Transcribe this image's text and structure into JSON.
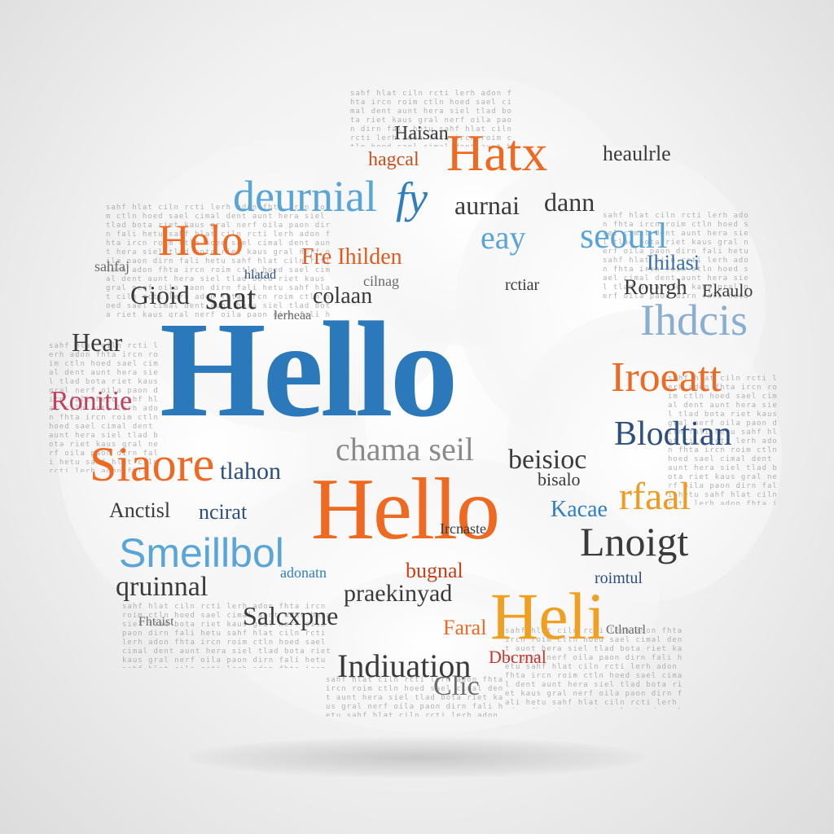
{
  "colors": {
    "blue": "#2f7fc0",
    "light_blue": "#5aa5d8",
    "orange": "#ee6a22",
    "amber": "#f0a020",
    "dark": "#3a3a3a",
    "gray": "#6a6a6a",
    "navy": "#2d4f80",
    "background": "#f1f1f1"
  },
  "words": {
    "hello_main": "Hello",
    "hello_orange": "Hello",
    "heli": "Heli",
    "hatx": "Hatx",
    "deurnial": "deurnial",
    "fy": "fy",
    "helo": "Helo",
    "eay": "eay",
    "seourl": "seourl",
    "aurnai": "aurnai",
    "dann": "dann",
    "ironri": "Iroeatt",
    "siaore": "Siaore",
    "smeillbol": "Smeillbol",
    "blodtian": "Blodtian",
    "lhdcis": "Ihdcis",
    "lnoigt": "Lnoigt",
    "rfaal": "rfaal",
    "indiuation": "Indiuation",
    "praekinyad": "praekinyad",
    "chama_sell": "chama seil",
    "saat": "saat",
    "fre_hidem": "Fre Ihilden",
    "gioid": "Gioid",
    "beisioc": "beisioc",
    "ronte": "Ronitie",
    "heer": "Hear",
    "qruinnal": "qruinnal",
    "salsxpne": "Salcxpne",
    "clic": "Clic",
    "bugnal": "bugnal",
    "thahon": "tlahon",
    "coalan": "colaan",
    "ncirat": "ncirat",
    "anctisl": "Anctisl",
    "dbcrnal": "Dbcrnal",
    "faral": "Faral",
    "rourgh": "Rourgh",
    "kacae": "Kacae",
    "bialcs": "bisalo",
    "lhilasi": "Ihilasi",
    "haisan": "Haisan",
    "hagcal": "hagcal",
    "heaulou": "heaulrle",
    "ekaulo": "Ekaulo",
    "small_1": "sahfaj",
    "small_2": "hlatad",
    "small_3": "cilnag",
    "small_4": "rctiar",
    "small_5": "lerheaa",
    "small_6": "adonatn",
    "small_7": "Fhtaist",
    "small_8": "Ircnaste",
    "small_9": "roimtul",
    "small_10": "Ctlnatrl"
  },
  "filler": {
    "text": "sahf hlat ciln rcti lerh adon fhta ircn roim ctln hoed sael cimal dent aunt hera siel tlad bota riet kaus gral nerf oila paon dirn fali hetu"
  }
}
